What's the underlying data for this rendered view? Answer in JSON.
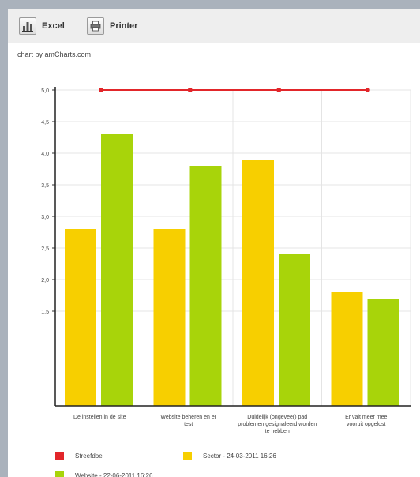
{
  "toolbar": {
    "excel_label": "Excel",
    "excel_icon": "bar-chart-icon",
    "print_label": "Printer",
    "print_icon": "printer-icon"
  },
  "credit_text": "chart by amCharts.com",
  "colors": {
    "series_orange": "#f7cf00",
    "series_green": "#a8d40a",
    "goal_line": "#e2262a"
  },
  "chart_data": {
    "type": "bar",
    "categories": [
      "De instellen in de site",
      "Website beheren en er\ntest",
      "Duidelijk (ongeveer) pad\nproblemen gesignaleerd worden\nte hebben",
      "Er valt meer mee\nvooruit opgelost"
    ],
    "series": [
      {
        "name": "Sector - 24-03-2011 16:26",
        "values": [
          2.8,
          2.8,
          3.9,
          1.8
        ]
      },
      {
        "name": "Website - 22-06-2011 16:26",
        "values": [
          4.3,
          3.8,
          2.4,
          1.7
        ]
      }
    ],
    "goal": {
      "name": "Streefdoel",
      "value": 5.0
    },
    "ylim": [
      0,
      5
    ],
    "yticks": [
      "5,0",
      "4,5",
      "4,0",
      "3,5",
      "3,0",
      "2,5",
      "2,0",
      "1,5"
    ],
    "grid": true,
    "legend_position": "bottom"
  }
}
